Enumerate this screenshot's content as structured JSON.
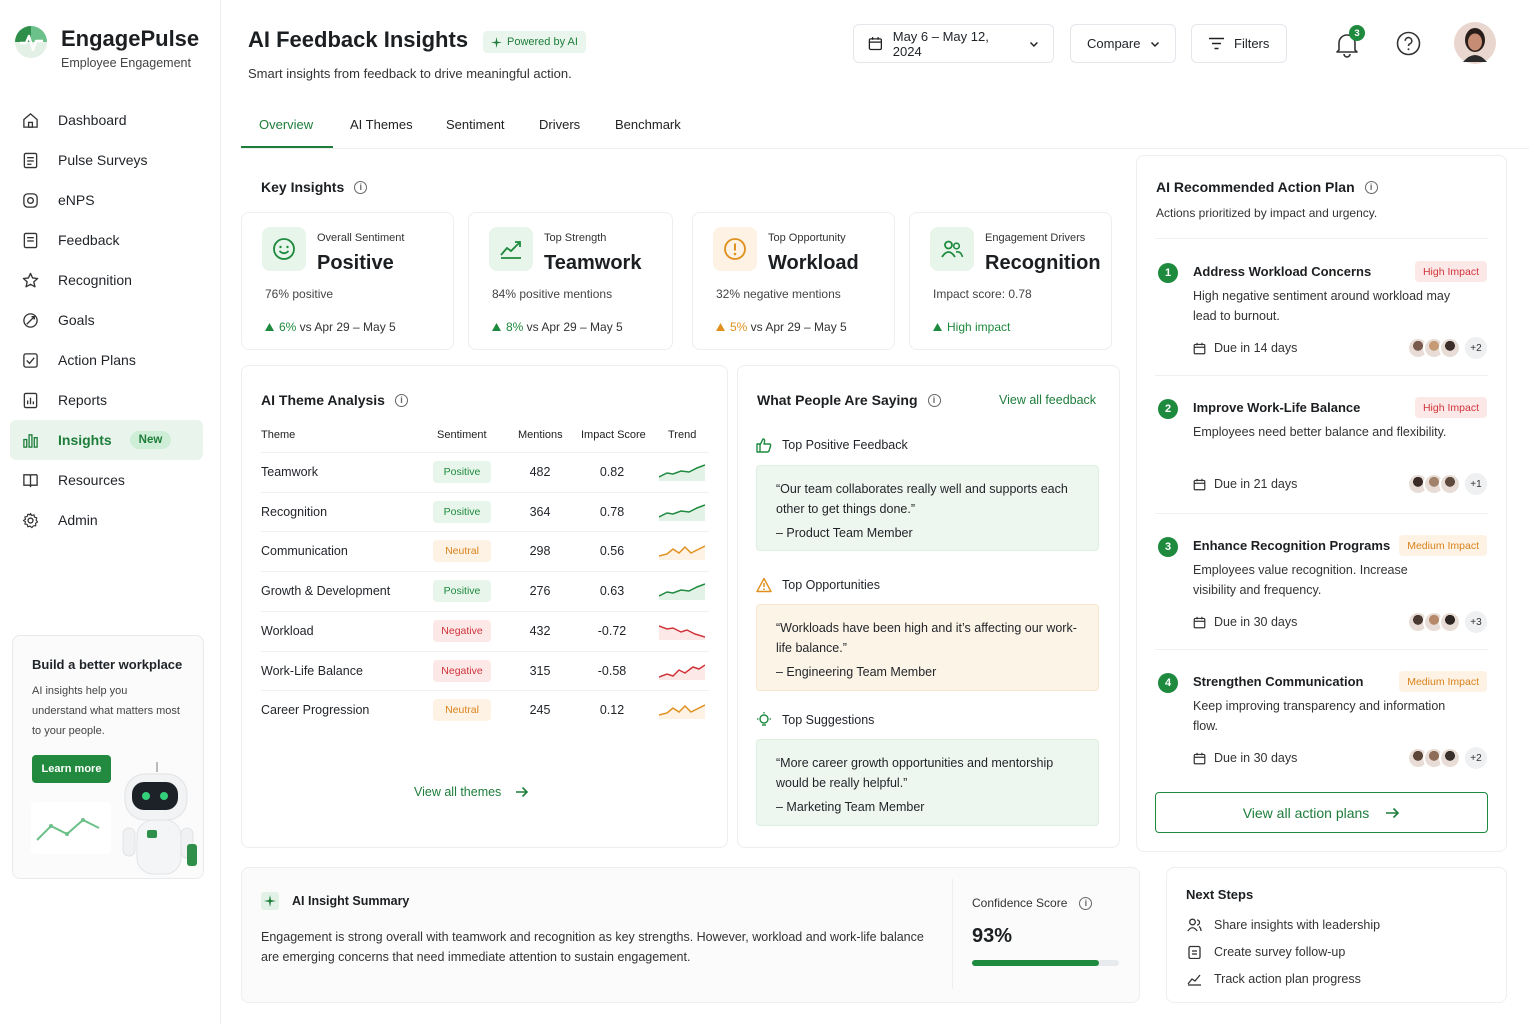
{
  "brand": {
    "name": "EngagePulse",
    "subtitle": "Employee Engagement"
  },
  "nav": [
    {
      "label": "Dashboard",
      "icon": "home-icon"
    },
    {
      "label": "Pulse Surveys",
      "icon": "survey-icon"
    },
    {
      "label": "eNPS",
      "icon": "enps-icon"
    },
    {
      "label": "Feedback",
      "icon": "feedback-icon"
    },
    {
      "label": "Recognition",
      "icon": "star-icon"
    },
    {
      "label": "Goals",
      "icon": "target-icon"
    },
    {
      "label": "Action Plans",
      "icon": "checklist-icon"
    },
    {
      "label": "Reports",
      "icon": "report-icon"
    },
    {
      "label": "Insights",
      "icon": "insights-icon",
      "badge": "New",
      "active": true
    },
    {
      "label": "Resources",
      "icon": "book-icon"
    },
    {
      "label": "Admin",
      "icon": "gear-icon"
    }
  ],
  "promo": {
    "title": "Build a better workplace",
    "text": "AI insights help you understand what matters most to your people.",
    "button": "Learn more"
  },
  "header": {
    "title": "AI Feedback Insights",
    "chip": "Powered by AI",
    "subtitle": "Smart insights from feedback to drive meaningful action.",
    "date_range": "May 6 – May 12, 2024",
    "compare": "Compare",
    "filters": "Filters",
    "notif_count": "3"
  },
  "tabs": [
    "Overview",
    "AI Themes",
    "Sentiment",
    "Drivers",
    "Benchmark"
  ],
  "key_insights": {
    "title": "Key Insights",
    "cards": [
      {
        "label": "Overall Sentiment",
        "value": "Positive",
        "desc": "76% positive",
        "trend_pct": "6%",
        "trend_rest": " vs Apr 29 – May 5",
        "color": "#1e8a3e"
      },
      {
        "label": "Top Strength",
        "value": "Teamwork",
        "desc": "84% positive mentions",
        "trend_pct": "8%",
        "trend_rest": " vs Apr 29 – May 5",
        "color": "#1e8a3e"
      },
      {
        "label": "Top Opportunity",
        "value": "Workload",
        "desc": "32% negative mentions",
        "trend_pct": "5%",
        "trend_rest": " vs Apr 29 – May 5",
        "color": "#e0901f"
      },
      {
        "label": "Engagement Drivers",
        "value": "Recognition",
        "desc": "Impact score: 0.78",
        "trend_pct": "High impact",
        "trend_rest": "",
        "color": "#1e8a3e"
      }
    ]
  },
  "themes": {
    "title": "AI Theme Analysis",
    "columns": [
      "Theme",
      "Sentiment",
      "Mentions",
      "Impact Score",
      "Trend"
    ],
    "rows": [
      {
        "theme": "Teamwork",
        "sentiment": "Positive",
        "mentions": "482",
        "impact": "0.82",
        "kind": "pos"
      },
      {
        "theme": "Recognition",
        "sentiment": "Positive",
        "mentions": "364",
        "impact": "0.78",
        "kind": "pos"
      },
      {
        "theme": "Communication",
        "sentiment": "Neutral",
        "mentions": "298",
        "impact": "0.56",
        "kind": "neu"
      },
      {
        "theme": "Growth & Development",
        "sentiment": "Positive",
        "mentions": "276",
        "impact": "0.63",
        "kind": "pos"
      },
      {
        "theme": "Workload",
        "sentiment": "Negative",
        "mentions": "432",
        "impact": "-0.72",
        "kind": "neg"
      },
      {
        "theme": "Work-Life Balance",
        "sentiment": "Negative",
        "mentions": "315",
        "impact": "-0.58",
        "kind": "neg"
      },
      {
        "theme": "Career Progression",
        "sentiment": "Neutral",
        "mentions": "245",
        "impact": "0.12",
        "kind": "neu"
      }
    ],
    "view_all": "View all themes"
  },
  "saying": {
    "title": "What People Are Saying",
    "view_all": "View all feedback",
    "sections": [
      {
        "heading": "Top Positive Feedback",
        "quote": "“Our team collaborates really well and supports each other to get things done.”",
        "who": "– Product Team Member",
        "bg": "#edf7ef",
        "border": "#dcefe1"
      },
      {
        "heading": "Top Opportunities",
        "quote": "“Workloads have been high and it’s affecting our work-life balance.”",
        "who": "– Engineering Team Member",
        "bg": "#fdf4e8",
        "border": "#f6e6cf"
      },
      {
        "heading": "Top Suggestions",
        "quote": "“More career growth opportunities and mentorship would be really helpful.”",
        "who": "– Marketing Team Member",
        "bg": "#edf7ef",
        "border": "#dcefe1"
      }
    ]
  },
  "action_plan": {
    "title": "AI Recommended Action Plan",
    "subtitle": "Actions prioritized by impact and urgency.",
    "items": [
      {
        "num": "1",
        "title": "Address Workload Concerns",
        "impact": "High Impact",
        "level": "high",
        "desc": "High negative sentiment around workload may lead to burnout.",
        "due": "Due in 14 days",
        "more": "+2"
      },
      {
        "num": "2",
        "title": "Improve Work-Life Balance",
        "impact": "High Impact",
        "level": "high",
        "desc": "Employees need better balance and flexibility.",
        "due": "Due in 21 days",
        "more": "+1"
      },
      {
        "num": "3",
        "title": "Enhance Recognition Programs",
        "impact": "Medium Impact",
        "level": "med",
        "desc": "Employees value recognition. Increase visibility and frequency.",
        "due": "Due in 30 days",
        "more": "+3"
      },
      {
        "num": "4",
        "title": "Strengthen Communication",
        "impact": "Medium Impact",
        "level": "med",
        "desc": "Keep improving transparency and information flow.",
        "due": "Due in 30 days",
        "more": "+2"
      }
    ],
    "view_all": "View all action plans"
  },
  "summary": {
    "title": "AI Insight Summary",
    "text": "Engagement is strong overall with teamwork and recognition as key strengths. However, workload and work-life balance are emerging concerns that need immediate attention to sustain engagement.",
    "confidence_label": "Confidence Score",
    "confidence_value": "93%",
    "confidence_fraction": 0.93
  },
  "next_steps": {
    "title": "Next Steps",
    "items": [
      "Share insights with leadership",
      "Create survey follow-up",
      "Track action plan progress"
    ]
  },
  "colors": {
    "accent": "#1e7d3b",
    "positive": "#1e8a3e",
    "neutral": "#d9831c",
    "negative": "#d0343a"
  }
}
